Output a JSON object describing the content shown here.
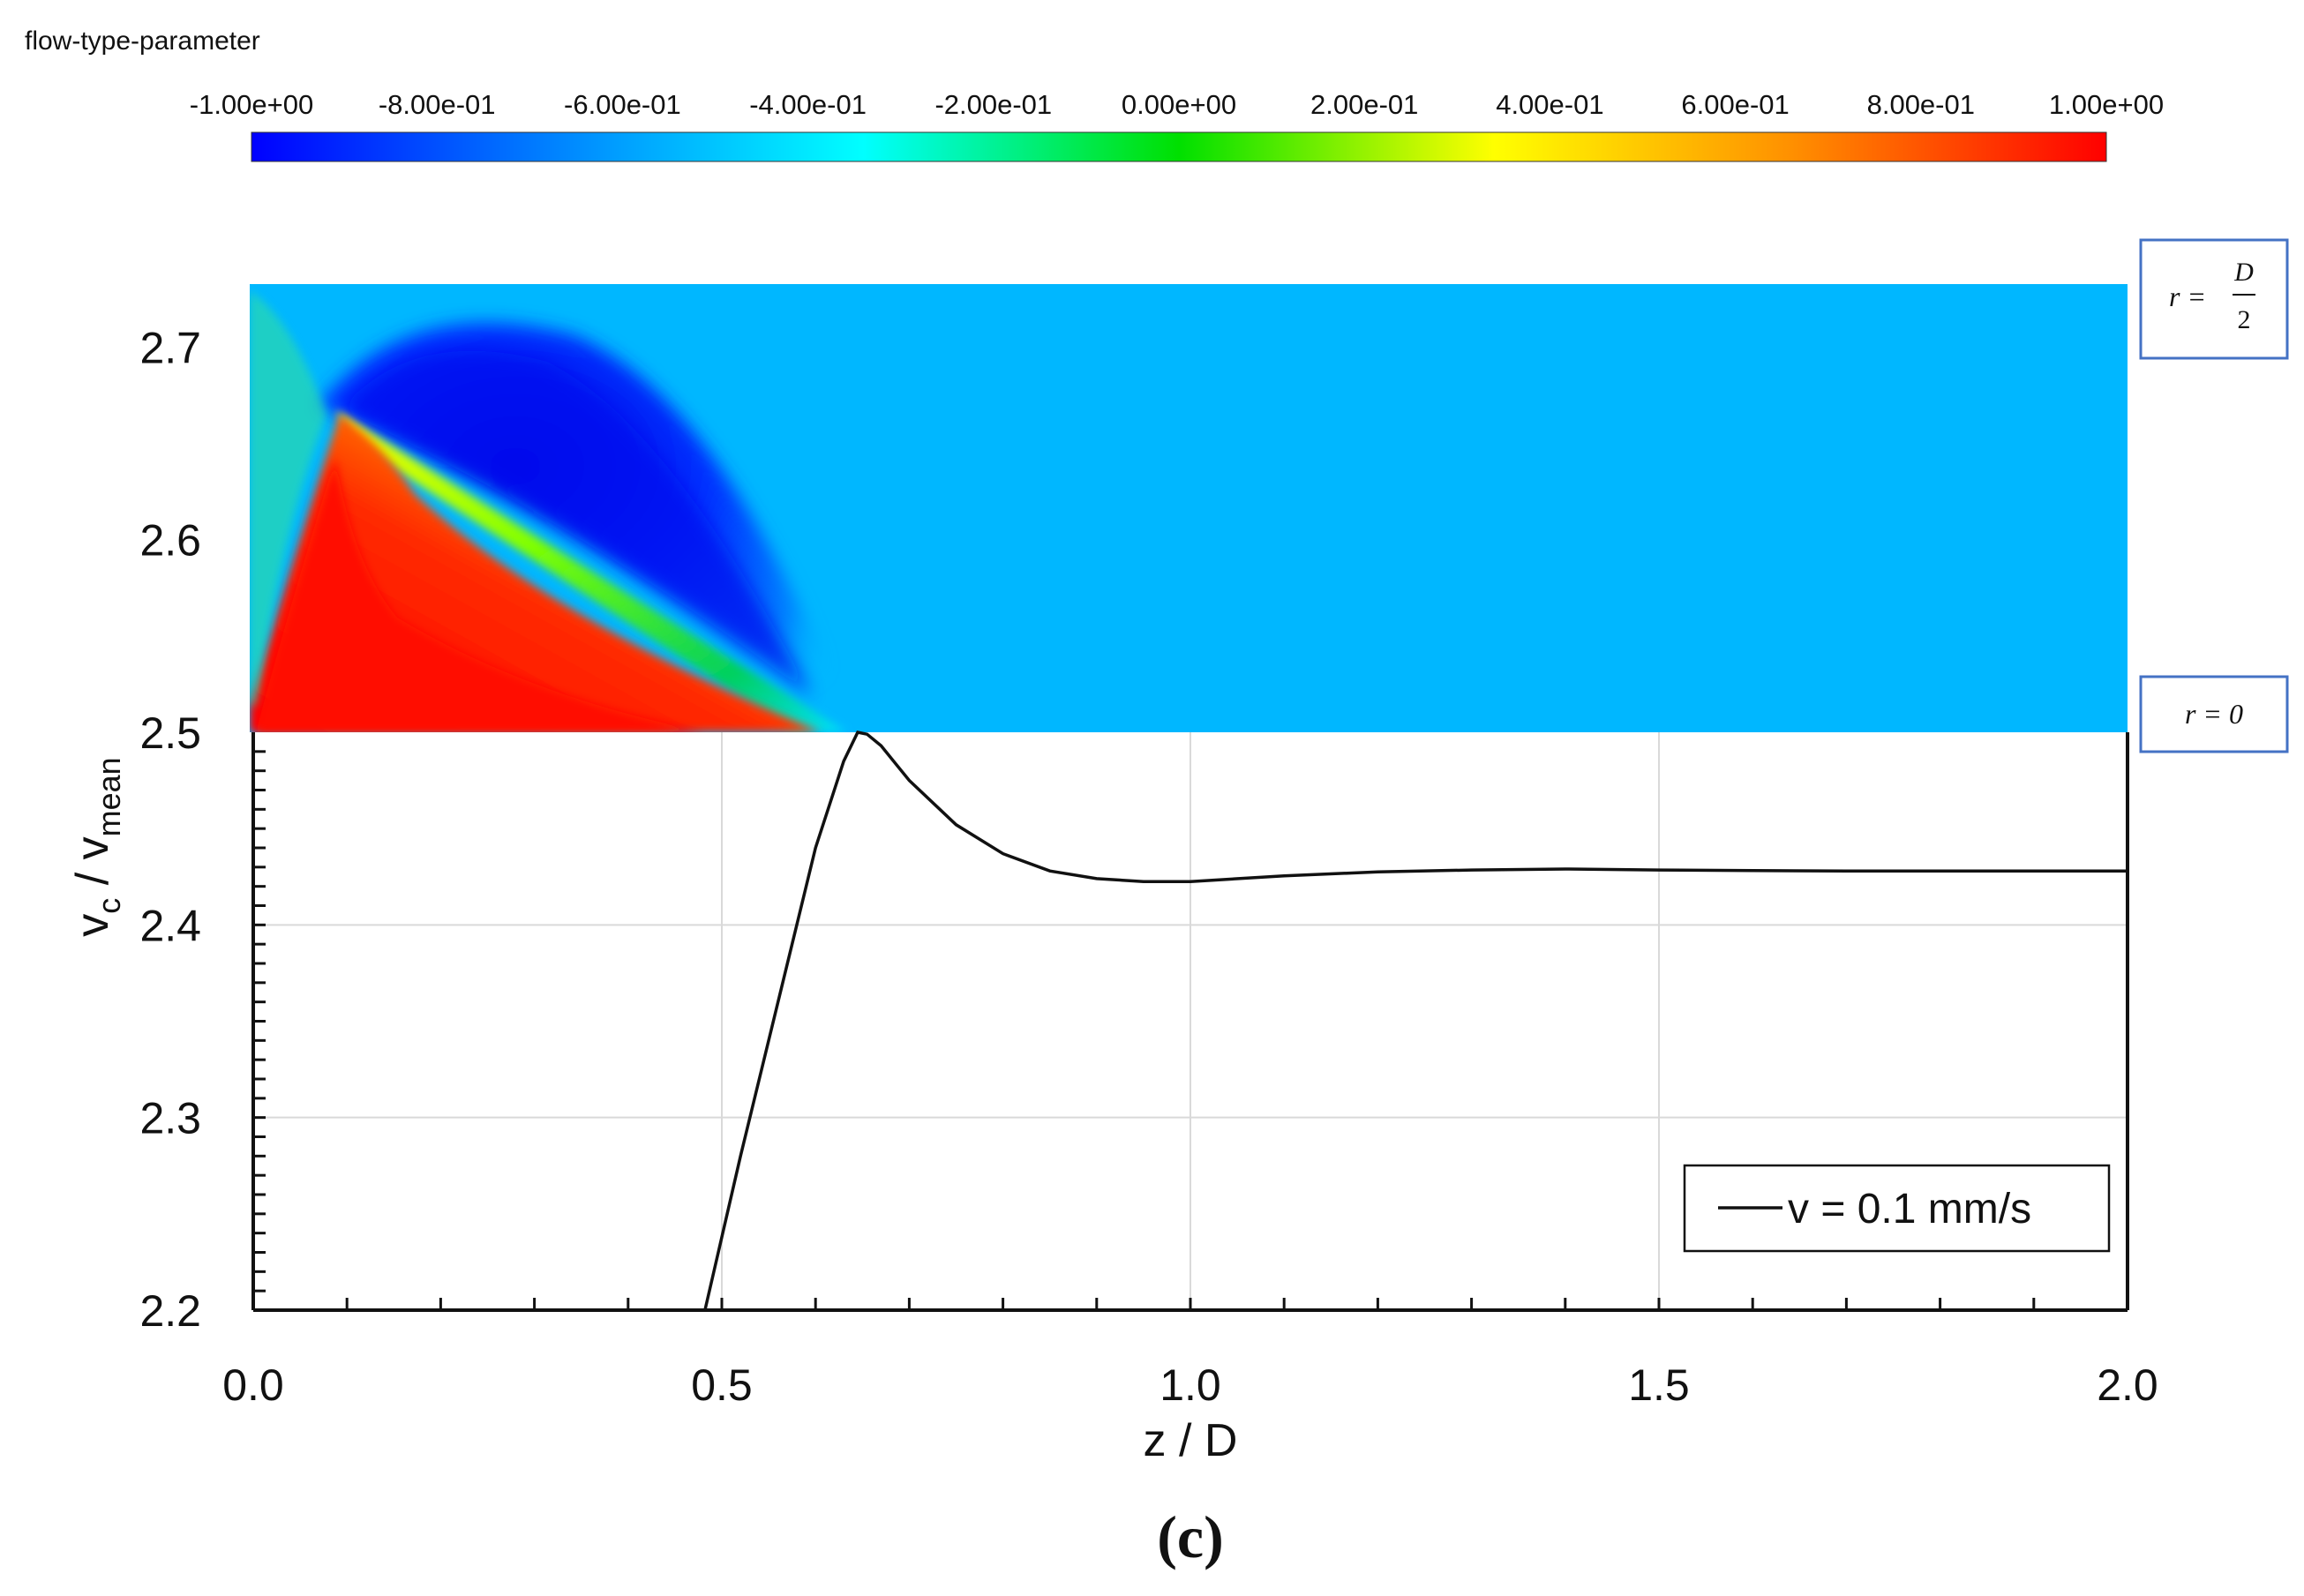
{
  "colorbar": {
    "title": "flow-type-parameter",
    "ticks": [
      "-1.00e+00",
      "-8.00e-01",
      "-6.00e-01",
      "-4.00e-01",
      "-2.00e-01",
      "0.00e+00",
      "2.00e-01",
      "4.00e-01",
      "6.00e-01",
      "8.00e-01",
      "1.00e+00"
    ],
    "range": [
      -1.0,
      1.0
    ],
    "colors": [
      "#0000ff",
      "#00bfff",
      "#00ffff",
      "#00ff00",
      "#ffff00",
      "#ff8000",
      "#ff0000"
    ]
  },
  "contour": {
    "background_color": "#00b7ff",
    "labels": {
      "top": {
        "left": "r = ",
        "numerator": "D",
        "denominator": "2"
      },
      "bottom": "r = 0"
    }
  },
  "chart_data": {
    "type": "line",
    "xlabel": "z / D",
    "ylabel": {
      "main": "v",
      "sub1": "c",
      "sep": " / v",
      "sub2": "mean"
    },
    "xlim": [
      0.0,
      2.0
    ],
    "ylim": [
      2.2,
      2.5
    ],
    "xticks": [
      "0.0",
      "0.5",
      "1.0",
      "1.5",
      "2.0"
    ],
    "xtick_values": [
      0.0,
      0.5,
      1.0,
      1.5,
      2.0
    ],
    "yticks": [
      "2.2",
      "2.3",
      "2.4",
      "2.5"
    ],
    "ytick_values": [
      2.2,
      2.3,
      2.4,
      2.5
    ],
    "ytick_contour": {
      "label": "2.6",
      "value": 2.6
    },
    "ytick_contour_top": {
      "label": "2.7",
      "value": 2.7
    },
    "grid": true,
    "legend": "bottom-right",
    "series": [
      {
        "name": "v = 0.1 mm/s",
        "x": [
          0.482,
          0.52,
          0.56,
          0.6,
          0.63,
          0.645,
          0.655,
          0.67,
          0.7,
          0.75,
          0.8,
          0.85,
          0.9,
          0.95,
          1.0,
          1.1,
          1.2,
          1.3,
          1.4,
          1.5,
          1.6,
          1.7,
          1.8,
          1.9,
          2.0
        ],
        "y": [
          2.2,
          2.28,
          2.36,
          2.44,
          2.485,
          2.5,
          2.499,
          2.493,
          2.475,
          2.452,
          2.437,
          2.428,
          2.424,
          2.4225,
          2.4225,
          2.4255,
          2.4275,
          2.4285,
          2.429,
          2.4285,
          2.4282,
          2.428,
          2.428,
          2.428,
          2.428
        ]
      }
    ]
  },
  "caption": "(c)"
}
